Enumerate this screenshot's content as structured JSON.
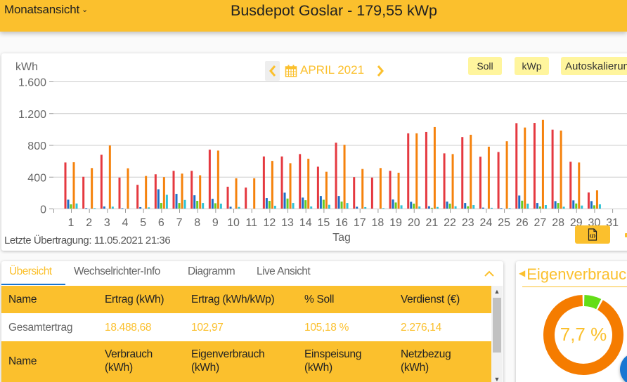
{
  "header": {
    "view_selector": "Monatsansicht",
    "title": "Busdepot Goslar - 179,55 kWp"
  },
  "chart_panel": {
    "unit": "kWh",
    "month_label": "APRIL 2021",
    "buttons": {
      "soll": "Soll",
      "kwp": "kWp",
      "autoscale": "Autoskalierung"
    },
    "last_transfer": "Letzte Übertragung: 11.05.2021 21:36",
    "icons": {
      "prev": "chevron-left-icon",
      "next": "chevron-right-icon",
      "calendar": "calendar-icon",
      "export": "file-code-icon"
    }
  },
  "chart_data": {
    "type": "bar",
    "title": "",
    "xlabel": "Tag",
    "ylabel": "kWh",
    "ylim": [
      0,
      1600
    ],
    "grid": true,
    "y_ticks": [
      {
        "value": 1600,
        "label": "1.600"
      },
      {
        "value": 1200,
        "label": "1.200"
      },
      {
        "value": 800,
        "label": "800"
      },
      {
        "value": 400,
        "label": "400"
      },
      {
        "value": 0,
        "label": "0"
      }
    ],
    "categories": [
      "1",
      "2",
      "3",
      "4",
      "5",
      "6",
      "7",
      "8",
      "9",
      "10",
      "11",
      "12",
      "13",
      "14",
      "15",
      "16",
      "17",
      "18",
      "19",
      "20",
      "21",
      "22",
      "23",
      "24",
      "25",
      "26",
      "27",
      "28",
      "29",
      "30",
      "31"
    ],
    "bar_offsets": [
      -8,
      -4,
      0,
      4,
      8
    ],
    "series": [
      {
        "name": "series_red",
        "color": "#e53940",
        "values": [
          580,
          400,
          677,
          390,
          299,
          431,
          475,
          475,
          741,
          275,
          264,
          656,
          656,
          686,
          527,
          829,
          396,
          390,
          475,
          947,
          964,
          695,
          900,
          653,
          712,
          1075,
          1078,
          993,
          589,
          202,
          null
        ]
      },
      {
        "name": "series_blue",
        "color": "#1e6fc6",
        "values": [
          112,
          5,
          26,
          3,
          18,
          243,
          185,
          167,
          123,
          23,
          0,
          132,
          200,
          138,
          158,
          158,
          23,
          0,
          114,
          85,
          29,
          88,
          70,
          12,
          5,
          164,
          70,
          94,
          103,
          94,
          null
        ]
      },
      {
        "name": "series_green",
        "color": "#66cc22",
        "values": [
          53,
          0,
          0,
          0,
          0,
          70,
          70,
          97,
          67,
          0,
          0,
          97,
          126,
          105,
          111,
          88,
          0,
          0,
          76,
          62,
          10,
          62,
          29,
          0,
          0,
          99,
          26,
          70,
          64,
          41,
          null
        ]
      },
      {
        "name": "series_orange",
        "color": "#f5820c",
        "values": [
          583,
          510,
          794,
          507,
          410,
          396,
          440,
          419,
          730,
          381,
          381,
          600,
          571,
          627,
          463,
          803,
          498,
          510,
          451,
          947,
          1026,
          686,
          929,
          779,
          847,
          1020,
          1116,
          982,
          580,
          229,
          null
        ]
      },
      {
        "name": "series_cyan",
        "color": "#2ec4d6",
        "values": [
          64,
          5,
          24,
          0,
          15,
          173,
          108,
          70,
          62,
          20,
          0,
          35,
          70,
          26,
          47,
          70,
          18,
          5,
          41,
          26,
          20,
          29,
          44,
          10,
          5,
          62,
          44,
          23,
          38,
          53,
          null
        ]
      }
    ]
  },
  "tabs": [
    {
      "label": "Übersicht",
      "active": true
    },
    {
      "label": "Wechselrichter-Info",
      "active": false
    },
    {
      "label": "Diagramm",
      "active": false
    },
    {
      "label": "Live Ansicht",
      "active": false
    }
  ],
  "table": {
    "yield_header": [
      "Name",
      "Ertrag (kWh)",
      "Ertrag (kWh/kWp)",
      "% Soll",
      "Verdienst (€)"
    ],
    "yield_row": {
      "name": "Gesamtertrag",
      "ertrag_kwh": "18.488,68",
      "ertrag_kwh_kwp": "102,97",
      "soll_pct": "105,18 %",
      "verdienst": "2.276,14"
    },
    "consumption_header": {
      "name": "Name",
      "verbrauch": [
        "Verbrauch",
        "(kWh)"
      ],
      "eigenverbrauch": [
        "Eigenverbrauch",
        "(kWh)"
      ],
      "einspeisung": [
        "Einspeisung",
        "(kWh)"
      ],
      "netzbezug": [
        "Netzbezug",
        "(kWh)"
      ]
    }
  },
  "self_consumption": {
    "title": "Eigenverbrauch",
    "value_label": "7,7 %",
    "percent": 7.7,
    "colors": {
      "self": "#64dd17",
      "rest": "#f57c00"
    }
  }
}
